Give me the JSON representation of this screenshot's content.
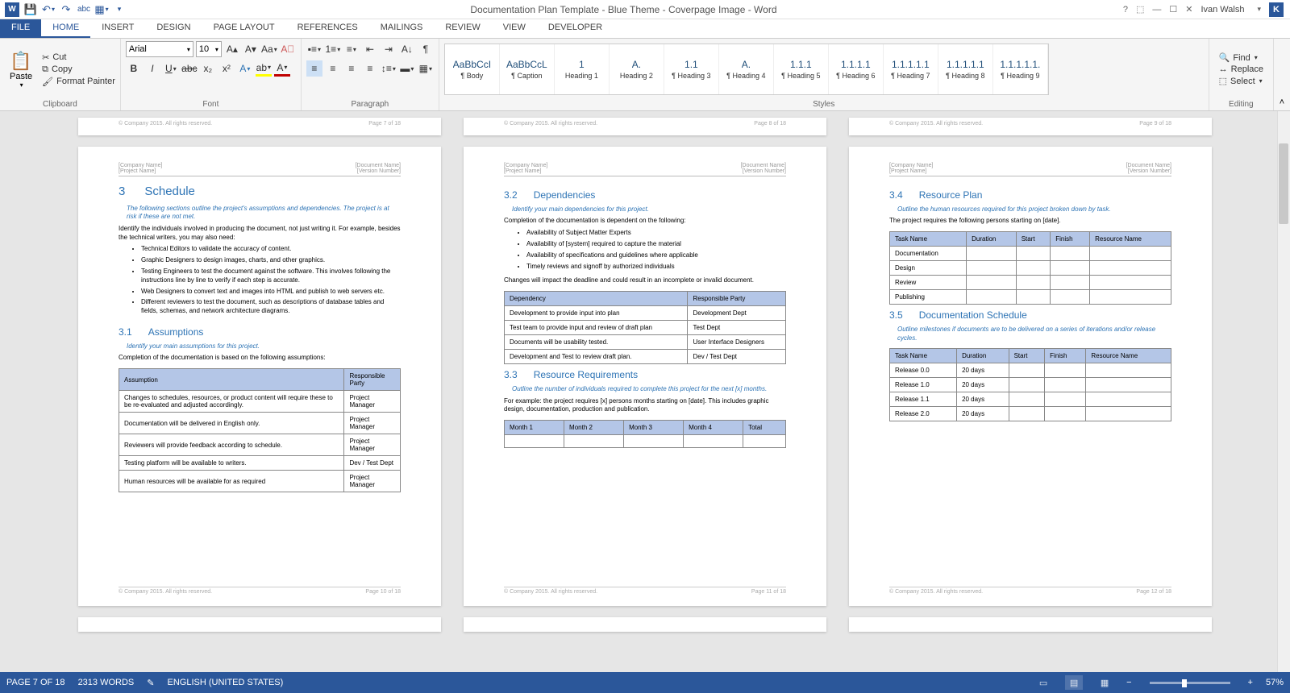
{
  "titlebar": {
    "title": "Documentation Plan Template - Blue Theme - Coverpage Image - Word",
    "user": "Ivan Walsh",
    "user_initial": "K"
  },
  "tabs": [
    "FILE",
    "HOME",
    "INSERT",
    "DESIGN",
    "PAGE LAYOUT",
    "REFERENCES",
    "MAILINGS",
    "REVIEW",
    "VIEW",
    "DEVELOPER"
  ],
  "ribbon": {
    "clipboard": {
      "label": "Clipboard",
      "paste": "Paste",
      "cut": "Cut",
      "copy": "Copy",
      "painter": "Format Painter"
    },
    "font": {
      "label": "Font",
      "name": "Arial",
      "size": "10"
    },
    "paragraph": {
      "label": "Paragraph"
    },
    "styles": {
      "label": "Styles",
      "items": [
        {
          "preview": "AaBbCcI",
          "name": "¶ Body"
        },
        {
          "preview": "AaBbCcL",
          "name": "¶ Caption"
        },
        {
          "preview": "1",
          "name": "Heading 1"
        },
        {
          "preview": "A.",
          "name": "Heading 2"
        },
        {
          "preview": "1.1",
          "name": "¶ Heading 3"
        },
        {
          "preview": "A.",
          "name": "¶ Heading 4"
        },
        {
          "preview": "1.1.1",
          "name": "¶ Heading 5"
        },
        {
          "preview": "1.1.1.1",
          "name": "¶ Heading 6"
        },
        {
          "preview": "1.1.1.1.1",
          "name": "¶ Heading 7"
        },
        {
          "preview": "1.1.1.1.1",
          "name": "¶ Heading 8"
        },
        {
          "preview": "1.1.1.1.1.",
          "name": "¶ Heading 9"
        }
      ]
    },
    "editing": {
      "label": "Editing",
      "find": "Find",
      "replace": "Replace",
      "select": "Select"
    }
  },
  "page_stubs": [
    {
      "copyright": "© Company 2015. All rights reserved.",
      "page": "Page 7 of 18"
    },
    {
      "copyright": "© Company 2015. All rights reserved.",
      "page": "Page 8 of 18"
    },
    {
      "copyright": "© Company 2015. All rights reserved.",
      "page": "Page 9 of 18"
    }
  ],
  "page_header": {
    "company": "[Company Name]",
    "project": "[Project Name]",
    "doc": "[Document Name]",
    "version": "[Version Number]"
  },
  "page1": {
    "h_num": "3",
    "h_title": "Schedule",
    "instr": "The following sections outline the project's assumptions and dependencies. The project is at risk if these are not met.",
    "p1": "Identify the individuals involved in producing the document, not just writing it. For example, besides the technical writers, you may also need:",
    "bullets": [
      "Technical Editors to validate the accuracy of content.",
      "Graphic Designers to design images, charts, and other graphics.",
      "Testing Engineers to test the document against the software. This involves following the instructions line by line to verify if each step is accurate.",
      "Web Designers to convert text and images into HTML and publish to web servers etc.",
      "Different reviewers to test the document, such as descriptions of database tables and fields, schemas, and network architecture diagrams."
    ],
    "s1_num": "3.1",
    "s1_title": "Assumptions",
    "s1_instr": "Identify your main assumptions for this project.",
    "s1_p": "Completion of the documentation is based on the following assumptions:",
    "t1_headers": [
      "Assumption",
      "Responsible Party"
    ],
    "t1_rows": [
      [
        "Changes to schedules, resources, or product content will require these to be re-evaluated and adjusted accordingly.",
        "Project Manager"
      ],
      [
        "Documentation will be delivered in English only.",
        "Project Manager"
      ],
      [
        "Reviewers will provide feedback according to schedule.",
        "Project Manager"
      ],
      [
        "Testing platform will be available to writers.",
        "Dev / Test Dept"
      ],
      [
        "Human resources will be available for as required",
        "Project Manager"
      ]
    ],
    "footer_copy": "© Company 2015. All rights reserved.",
    "footer_page": "Page 10 of 18"
  },
  "page2": {
    "s2_num": "3.2",
    "s2_title": "Dependencies",
    "s2_instr": "Identify your main dependencies for this project.",
    "s2_p": "Completion of the documentation is dependent on the following:",
    "s2_bullets": [
      "Availability of Subject Matter Experts",
      "Availability of [system] required to capture the material",
      "Availability of specifications and guidelines where applicable",
      "Timely reviews and signoff by authorized individuals"
    ],
    "s2_p2": "Changes will impact the deadline and could result in an incomplete or invalid document.",
    "t2_headers": [
      "Dependency",
      "Responsible Party"
    ],
    "t2_rows": [
      [
        "Development to provide input into plan",
        "Development Dept"
      ],
      [
        "Test team to provide input and review of draft plan",
        "Test Dept"
      ],
      [
        "Documents will be usability tested.",
        "User Interface Designers"
      ],
      [
        "Development and Test to review draft plan.",
        "Dev / Test Dept"
      ]
    ],
    "s3_num": "3.3",
    "s3_title": "Resource Requirements",
    "s3_instr": "Outline the number of individuals required to complete this project for the next [x] months.",
    "s3_p": "For example: the project requires [x] persons months starting on [date]. This includes graphic design, documentation, production and publication.",
    "t3_headers": [
      "Month 1",
      "Month 2",
      "Month 3",
      "Month 4",
      "Total"
    ],
    "footer_copy": "© Company 2015. All rights reserved.",
    "footer_page": "Page 11 of 18"
  },
  "page3": {
    "s4_num": "3.4",
    "s4_title": "Resource Plan",
    "s4_instr": "Outline the human resources required for this project broken down by task.",
    "s4_p": "The project requires the following persons starting on [date].",
    "t4_headers": [
      "Task Name",
      "Duration",
      "Start",
      "Finish",
      "Resource Name"
    ],
    "t4_rows": [
      [
        "Documentation",
        "",
        "",
        "",
        ""
      ],
      [
        "Design",
        "",
        "",
        "",
        ""
      ],
      [
        "Review",
        "",
        "",
        "",
        ""
      ],
      [
        "Publishing",
        "",
        "",
        "",
        ""
      ]
    ],
    "s5_num": "3.5",
    "s5_title": "Documentation Schedule",
    "s5_instr": "Outline milestones if documents are to be delivered on a series of iterations and/or release cycles.",
    "t5_headers": [
      "Task Name",
      "Duration",
      "Start",
      "Finish",
      "Resource Name"
    ],
    "t5_rows": [
      [
        "Release 0.0",
        "20 days",
        "",
        "",
        ""
      ],
      [
        "Release 1.0",
        "20 days",
        "",
        "",
        ""
      ],
      [
        "Release 1.1",
        "20 days",
        "",
        "",
        ""
      ],
      [
        "Release 2.0",
        "20 days",
        "",
        "",
        ""
      ]
    ],
    "footer_copy": "© Company 2015. All rights reserved.",
    "footer_page": "Page 12 of 18"
  },
  "statusbar": {
    "page": "PAGE 7 OF 18",
    "words": "2313 WORDS",
    "lang": "ENGLISH (UNITED STATES)",
    "zoom": "57%"
  }
}
